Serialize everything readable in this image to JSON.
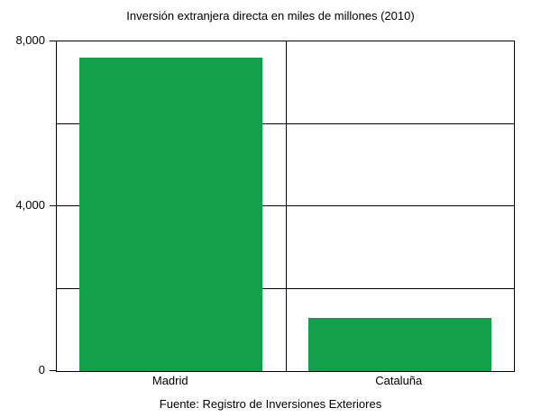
{
  "chart_data": {
    "type": "bar",
    "title": "Inversión extranjera directa en miles de millones (2010)",
    "caption": "Fuente: Registro de Inversiones Exteriores",
    "categories": [
      "Madrid",
      "Cataluña"
    ],
    "values": [
      7600,
      1300
    ],
    "ylim": [
      0,
      8000
    ],
    "ytick_values": [
      0,
      4000,
      8000
    ],
    "ytick_labels": [
      "0",
      "4,000",
      "8,000"
    ],
    "gridline_values": [
      2000,
      4000,
      6000
    ],
    "bar_color": "#12A04A",
    "grid": true,
    "legend_position": "none",
    "xlabel": "",
    "ylabel": ""
  }
}
